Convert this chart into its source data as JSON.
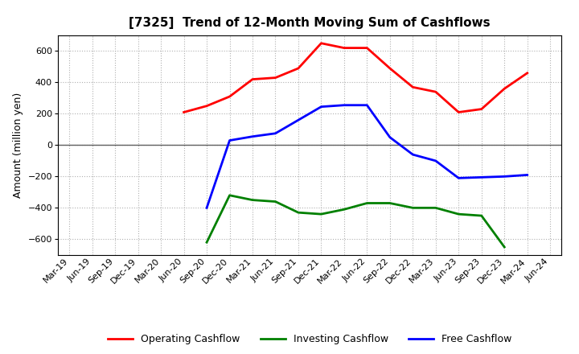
{
  "title": "[7325]  Trend of 12-Month Moving Sum of Cashflows",
  "ylabel": "Amount (million yen)",
  "ylim": [
    -700,
    700
  ],
  "yticks": [
    -600,
    -400,
    -200,
    0,
    200,
    400,
    600
  ],
  "x_labels": [
    "Mar-19",
    "Jun-19",
    "Sep-19",
    "Dec-19",
    "Mar-20",
    "Jun-20",
    "Sep-20",
    "Dec-20",
    "Mar-21",
    "Jun-21",
    "Sep-21",
    "Dec-21",
    "Mar-22",
    "Jun-22",
    "Sep-22",
    "Dec-22",
    "Mar-23",
    "Jun-23",
    "Sep-23",
    "Dec-23",
    "Mar-24",
    "Jun-24"
  ],
  "operating": [
    null,
    null,
    null,
    null,
    null,
    210,
    250,
    310,
    420,
    430,
    490,
    650,
    620,
    620,
    490,
    370,
    340,
    210,
    230,
    360,
    460,
    null
  ],
  "investing": [
    null,
    null,
    null,
    null,
    null,
    null,
    -620,
    -320,
    -350,
    -360,
    -430,
    -440,
    -410,
    -370,
    -370,
    -400,
    -400,
    -440,
    -450,
    -650,
    null,
    null
  ],
  "free": [
    null,
    null,
    null,
    null,
    null,
    null,
    -400,
    30,
    55,
    75,
    160,
    245,
    255,
    255,
    50,
    -60,
    -100,
    -210,
    -205,
    -200,
    -190,
    null
  ],
  "operating_color": "#ff0000",
  "investing_color": "#008000",
  "free_color": "#0000ff",
  "line_width": 2.0,
  "background_color": "#ffffff",
  "plot_bg_color": "#ffffff",
  "grid_color": "#b0b0b0",
  "zero_line_color": "#606060",
  "title_fontsize": 11,
  "ylabel_fontsize": 9,
  "tick_fontsize": 8,
  "legend_fontsize": 9
}
